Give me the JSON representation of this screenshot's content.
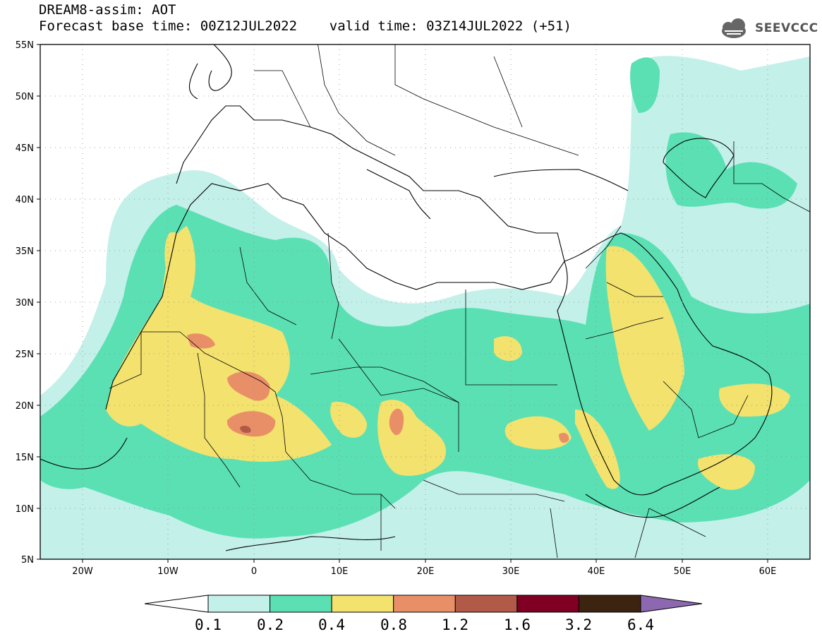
{
  "header": {
    "title": "DREAM8-assim: AOT",
    "subtitle": "Forecast base time: 00Z12JUL2022    valid time: 03Z14JUL2022 (+51)",
    "logo_text": "SEEVCCC"
  },
  "map": {
    "lat_labels": [
      "55N",
      "50N",
      "45N",
      "40N",
      "35N",
      "30N",
      "25N",
      "20N",
      "15N",
      "10N",
      "5N"
    ],
    "lon_labels": [
      "20W",
      "10W",
      "0",
      "10E",
      "20E",
      "30E",
      "40E",
      "50E",
      "60E"
    ],
    "fill_colors": {
      "c01": "#c4f0ea",
      "c02": "#5be0b4",
      "c04": "#f3e26e",
      "c08": "#e98f68",
      "c12": "#b25a48",
      "c16": "#800024",
      "c32": "#3d2410",
      "c64": "#8d68b0"
    }
  },
  "colorbar": {
    "labels": [
      "0.1",
      "0.2",
      "0.4",
      "0.8",
      "1.2",
      "1.6",
      "3.2",
      "6.4"
    ],
    "colors": [
      "#c4f0ea",
      "#5be0b4",
      "#f3e26e",
      "#e98f68",
      "#b25a48",
      "#800024",
      "#3d2410"
    ],
    "extend_high_color": "#8d68b0",
    "extend_low_color": "#ffffff"
  }
}
